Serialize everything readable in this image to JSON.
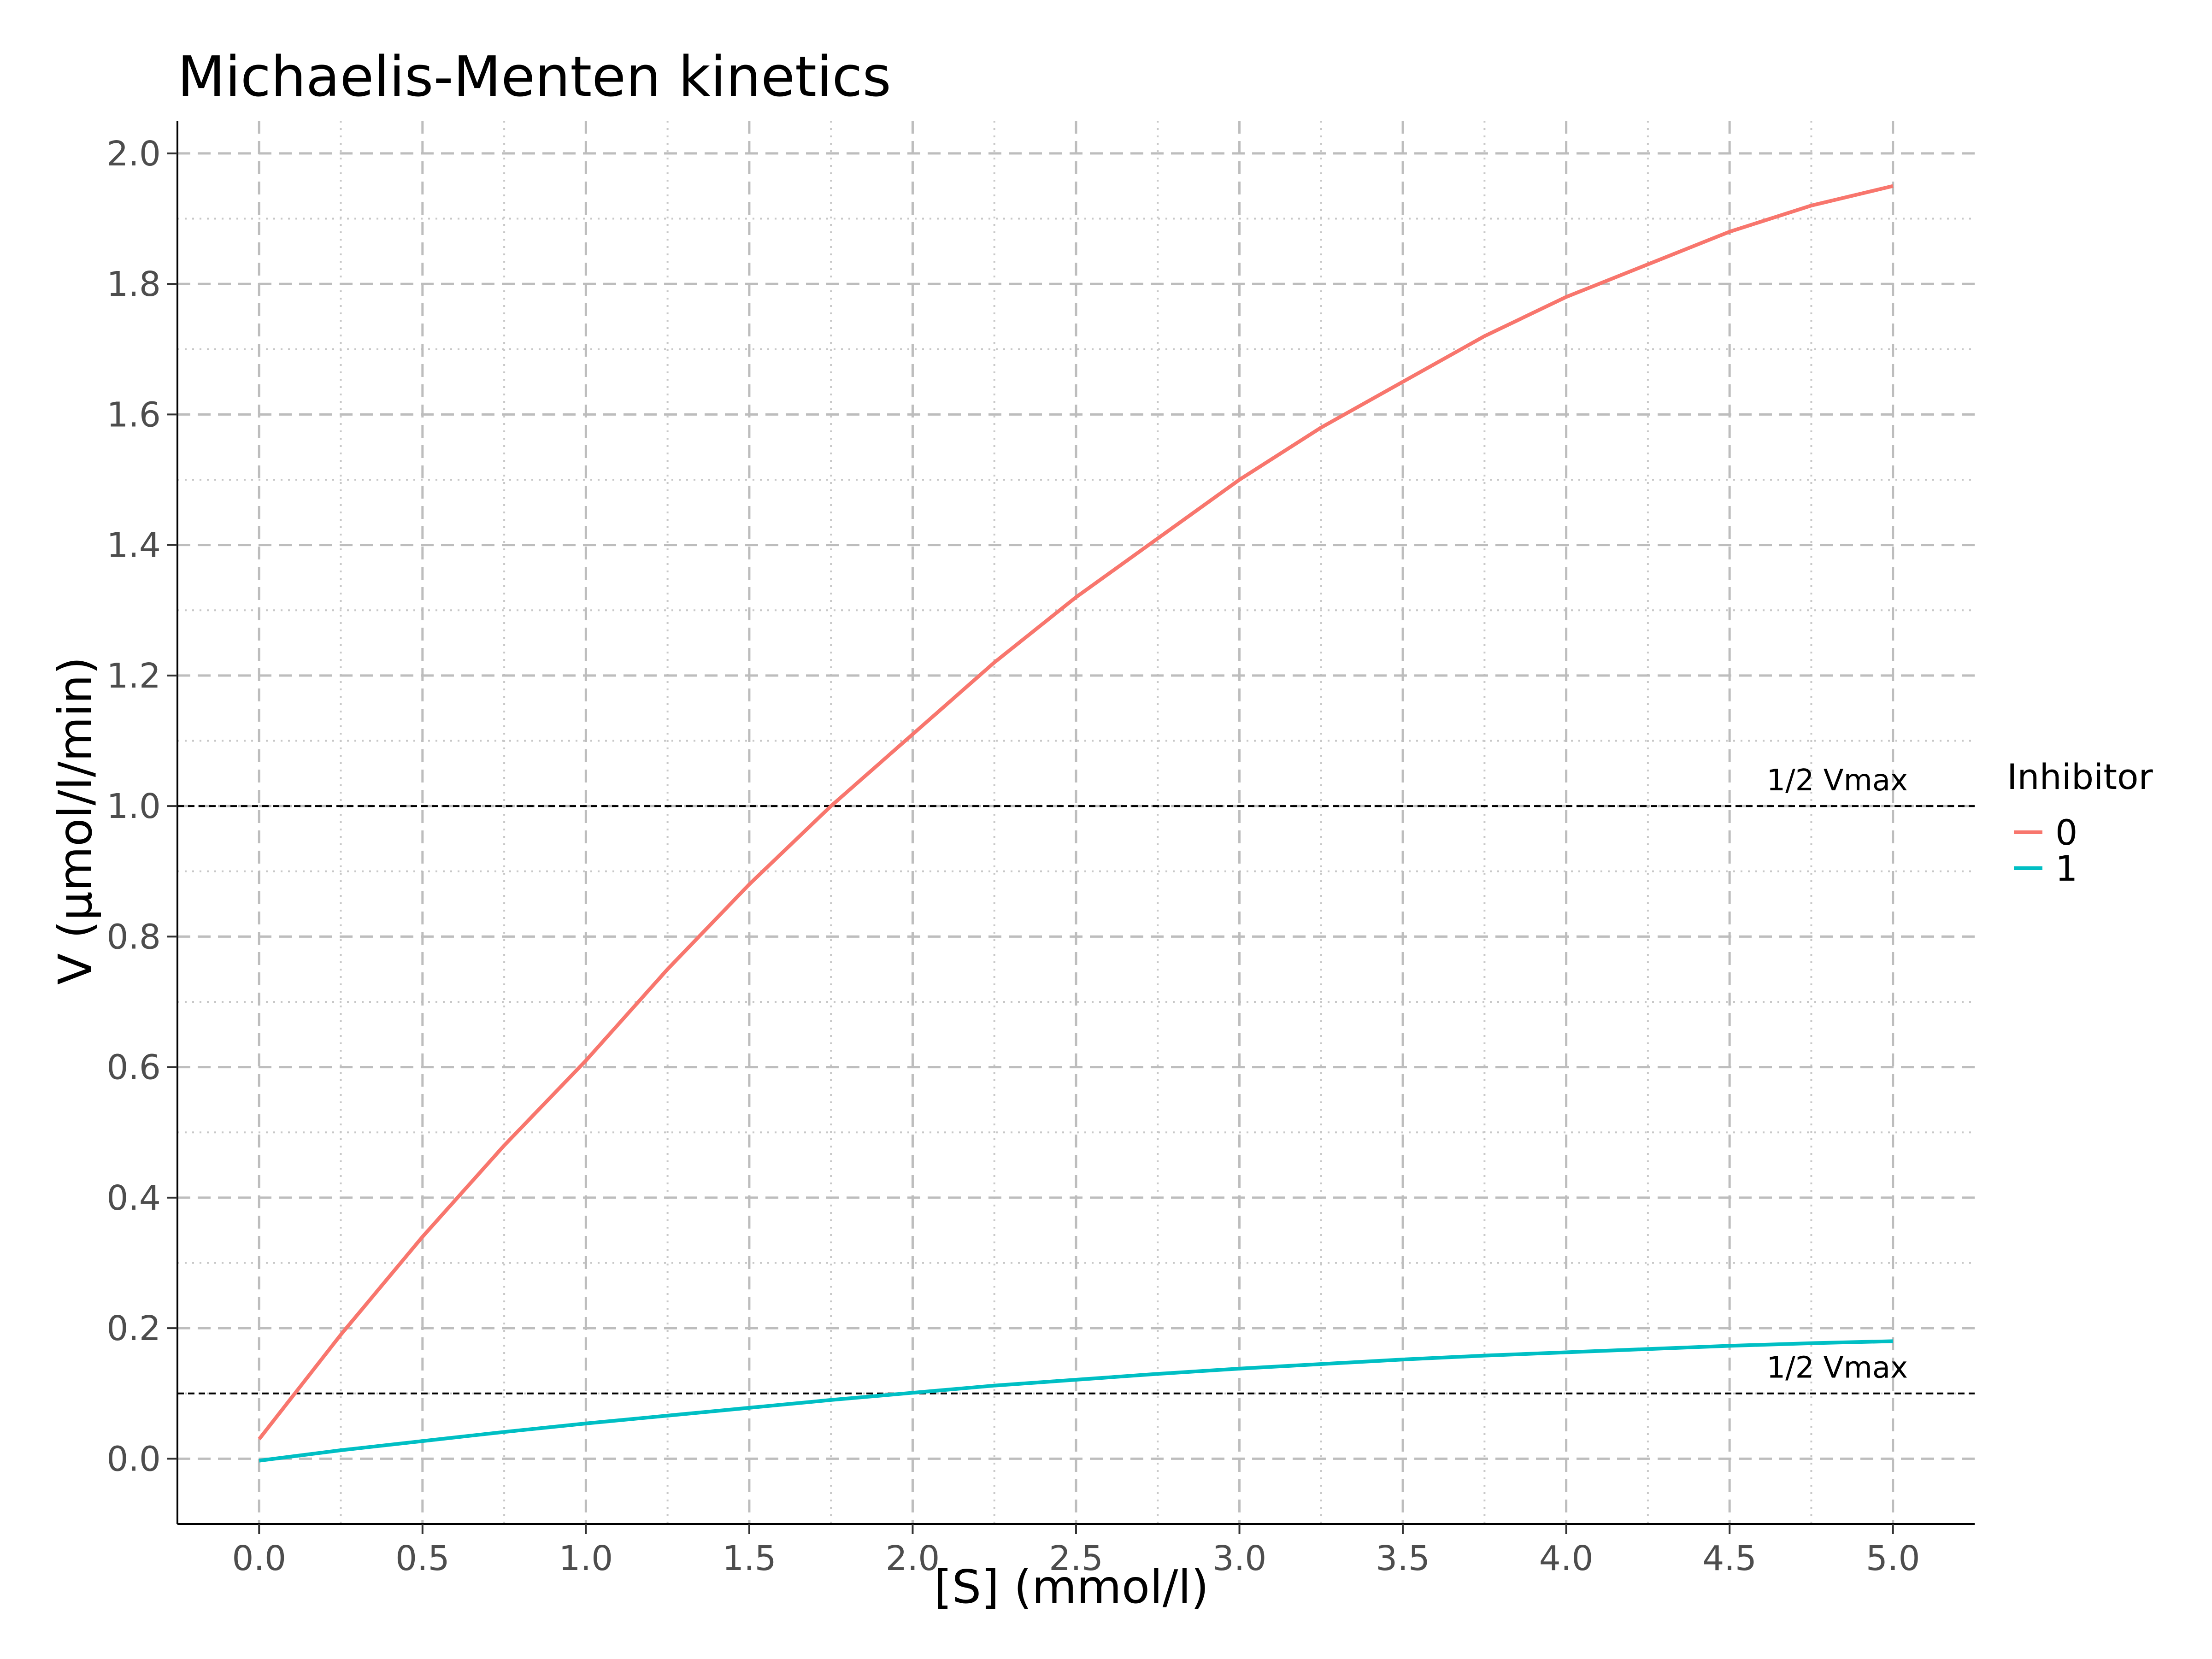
{
  "chart_data": {
    "type": "line",
    "title": "Michaelis-Menten kinetics",
    "xlabel": "[S] (mmol/l)",
    "ylabel": "V (µmol/l/min)",
    "xlim": [
      -0.25,
      5.25
    ],
    "ylim": [
      -0.1,
      2.05
    ],
    "x_ticks": [
      "0.0",
      "0.5",
      "1.0",
      "1.5",
      "2.0",
      "2.5",
      "3.0",
      "3.5",
      "4.0",
      "4.5",
      "5.0"
    ],
    "y_ticks": [
      "0.0",
      "0.2",
      "0.4",
      "0.6",
      "0.8",
      "1.0",
      "1.2",
      "1.4",
      "1.6",
      "1.8",
      "2.0"
    ],
    "grid": true,
    "legend": {
      "title": "Inhibitor",
      "position": "right"
    },
    "series": [
      {
        "name": "0",
        "color": "#F8766D",
        "x": [
          0.0,
          0.25,
          0.5,
          0.75,
          1.0,
          1.25,
          1.5,
          1.75,
          2.0,
          2.25,
          2.5,
          2.75,
          3.0,
          3.25,
          3.5,
          3.75,
          4.0,
          4.25,
          4.5,
          4.75,
          5.0
        ],
        "y": [
          0.03,
          0.19,
          0.34,
          0.48,
          0.61,
          0.75,
          0.88,
          1.0,
          1.11,
          1.22,
          1.32,
          1.41,
          1.5,
          1.58,
          1.65,
          1.72,
          1.78,
          1.83,
          1.88,
          1.92,
          1.95
        ]
      },
      {
        "name": "1",
        "color": "#00BFC4",
        "x": [
          0.0,
          0.25,
          0.5,
          0.75,
          1.0,
          1.25,
          1.5,
          1.75,
          2.0,
          2.25,
          2.5,
          2.75,
          3.0,
          3.25,
          3.5,
          3.75,
          4.0,
          4.25,
          4.5,
          4.75,
          5.0
        ],
        "y": [
          -0.003,
          0.013,
          0.027,
          0.041,
          0.054,
          0.066,
          0.078,
          0.09,
          0.101,
          0.112,
          0.121,
          0.13,
          0.138,
          0.145,
          0.152,
          0.158,
          0.163,
          0.168,
          0.173,
          0.177,
          0.18
        ]
      }
    ],
    "reference_lines": [
      {
        "y": 1.0,
        "label": "1/2 Vmax"
      },
      {
        "y": 0.1,
        "label": "1/2 Vmax"
      }
    ]
  }
}
